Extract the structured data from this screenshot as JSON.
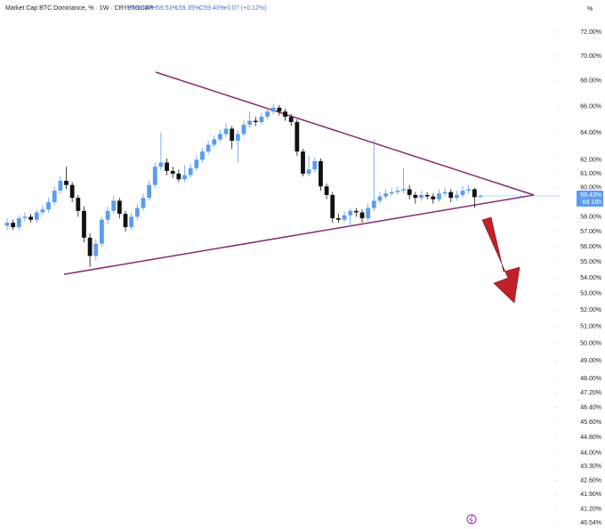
{
  "chart_data": {
    "type": "candlestick",
    "header": {
      "symbol": "Market Cap BTC Dominance, % · 1W · CRYPTOCAP",
      "open": "O59.35%",
      "high": "H59.53%",
      "low": "L59.35%",
      "close": "C59.43%",
      "change": "+0.07 (+0.12%)"
    },
    "unit_label": "%",
    "last_price_label": "59.43%",
    "countdown": "6d 16h",
    "log_scale": true,
    "grid": false,
    "up_color": "#5b9cf0",
    "down_color": "#111111",
    "ylim": [
      40.33,
      72.45
    ],
    "yticks": [
      {
        "value": 72,
        "label": "72.00%"
      },
      {
        "value": 70,
        "label": "70.00%"
      },
      {
        "value": 68,
        "label": "68.00%"
      },
      {
        "value": 66,
        "label": "66.00%"
      },
      {
        "value": 64,
        "label": "64.00%"
      },
      {
        "value": 62,
        "label": "62.00%"
      },
      {
        "value": 61,
        "label": "61.00%"
      },
      {
        "value": 60,
        "label": "60.00%"
      },
      {
        "value": 58,
        "label": "58.00%"
      },
      {
        "value": 57,
        "label": "57.00%"
      },
      {
        "value": 56,
        "label": "56.00%"
      },
      {
        "value": 55,
        "label": "55.00%"
      },
      {
        "value": 54,
        "label": "54.00%"
      },
      {
        "value": 53,
        "label": "53.00%"
      },
      {
        "value": 52,
        "label": "52.00%"
      },
      {
        "value": 51,
        "label": "51.00%"
      },
      {
        "value": 50,
        "label": "50.00%"
      },
      {
        "value": 49,
        "label": "49.00%"
      },
      {
        "value": 48,
        "label": "48.00%"
      },
      {
        "value": 47.2,
        "label": "47.20%"
      },
      {
        "value": 46.4,
        "label": "46.40%"
      },
      {
        "value": 45.6,
        "label": "45.60%"
      },
      {
        "value": 44.8,
        "label": "44.80%"
      },
      {
        "value": 44,
        "label": "44.00%"
      },
      {
        "value": 43.3,
        "label": "43.30%"
      },
      {
        "value": 42.6,
        "label": "42.60%"
      },
      {
        "value": 41.9,
        "label": "41.90%"
      },
      {
        "value": 41.2,
        "label": "41.20%"
      },
      {
        "value": 40.54,
        "label": "40.54%"
      }
    ],
    "open": [
      57.4,
      57.6,
      57.3,
      57.9,
      58.0,
      57.8,
      58.3,
      58.5,
      59.0,
      59.8,
      60.5,
      60.2,
      59.3,
      58.4,
      56.6,
      55.4,
      56.2,
      57.8,
      58.4,
      59.1,
      58.2,
      57.3,
      58.0,
      58.6,
      59.3,
      60.2,
      61.5,
      61.8,
      61.2,
      61.0,
      60.6,
      60.9,
      61.4,
      62.0,
      62.6,
      63.1,
      63.5,
      63.9,
      64.3,
      63.4,
      63.9,
      64.6,
      64.9,
      64.8,
      65.2,
      65.6,
      65.9,
      65.6,
      65.2,
      64.8,
      62.6,
      61.0,
      61.3,
      61.9,
      60.1,
      59.5,
      57.9,
      57.8,
      58.1,
      58.4,
      58.3,
      57.9,
      58.6,
      59.1,
      59.4,
      59.6,
      59.7,
      59.8,
      59.9,
      59.5,
      59.3,
      59.5,
      59.4,
      59.2,
      59.6,
      59.7,
      59.3,
      59.5,
      59.8,
      59.9,
      59.35
    ],
    "high": [
      57.9,
      57.8,
      58.1,
      58.3,
      58.2,
      58.5,
      58.8,
      59.3,
      60.1,
      60.8,
      61.5,
      60.4,
      59.5,
      58.7,
      56.9,
      56.5,
      58.0,
      58.7,
      59.4,
      59.3,
      58.4,
      58.3,
      58.9,
      59.6,
      60.5,
      61.8,
      64.0,
      62.1,
      61.5,
      61.3,
      61.6,
      61.7,
      62.3,
      62.9,
      63.4,
      63.8,
      64.2,
      64.7,
      64.5,
      64.2,
      64.9,
      65.6,
      65.2,
      65.5,
      65.9,
      66.2,
      66.1,
      65.8,
      65.4,
      65.0,
      62.8,
      62.3,
      62.2,
      62.1,
      60.3,
      59.7,
      58.2,
      58.4,
      58.6,
      58.6,
      58.5,
      58.9,
      63.5,
      59.7,
      59.9,
      60.0,
      60.1,
      61.4,
      60.2,
      59.7,
      59.8,
      59.7,
      59.6,
      59.9,
      60.0,
      59.9,
      59.8,
      60.1,
      60.2,
      60.0,
      59.53
    ],
    "low": [
      57.1,
      57.1,
      57.1,
      57.7,
      57.6,
      57.6,
      58.1,
      58.3,
      58.8,
      59.6,
      59.9,
      59.0,
      58.0,
      56.3,
      54.7,
      55.1,
      56.0,
      57.5,
      58.2,
      57.9,
      57.0,
      57.1,
      57.8,
      58.4,
      59.1,
      60.0,
      61.2,
      60.9,
      60.7,
      60.4,
      60.4,
      60.7,
      61.2,
      61.8,
      62.4,
      62.9,
      63.3,
      63.7,
      62.8,
      61.8,
      63.7,
      64.4,
      64.5,
      64.6,
      65.0,
      65.4,
      65.3,
      64.9,
      64.5,
      62.3,
      60.8,
      60.8,
      61.1,
      59.8,
      59.2,
      57.6,
      57.6,
      57.6,
      57.3,
      58.0,
      57.6,
      57.7,
      58.4,
      58.9,
      59.2,
      59.4,
      59.5,
      59.6,
      59.2,
      58.9,
      59.1,
      59.2,
      58.9,
      59.0,
      59.4,
      59.0,
      59.1,
      59.3,
      59.6,
      58.6,
      59.35
    ],
    "close": [
      57.6,
      57.3,
      57.9,
      58.0,
      57.8,
      58.3,
      58.5,
      59.0,
      59.8,
      60.5,
      60.2,
      59.3,
      58.4,
      56.6,
      55.4,
      56.2,
      57.8,
      58.4,
      59.1,
      58.2,
      57.3,
      58.0,
      58.6,
      59.3,
      60.2,
      61.5,
      61.8,
      61.2,
      61.0,
      60.6,
      60.9,
      61.4,
      62.0,
      62.6,
      63.1,
      63.5,
      63.9,
      64.3,
      63.4,
      63.9,
      64.6,
      64.9,
      64.8,
      65.2,
      65.6,
      65.9,
      65.6,
      65.2,
      64.8,
      62.6,
      61.0,
      61.3,
      61.9,
      60.1,
      59.5,
      57.9,
      57.8,
      58.1,
      58.4,
      58.3,
      57.9,
      58.6,
      59.1,
      59.4,
      59.6,
      59.7,
      59.8,
      59.9,
      59.5,
      59.3,
      59.5,
      59.4,
      59.2,
      59.6,
      59.7,
      59.3,
      59.5,
      59.8,
      59.9,
      59.35,
      59.43
    ]
  }
}
